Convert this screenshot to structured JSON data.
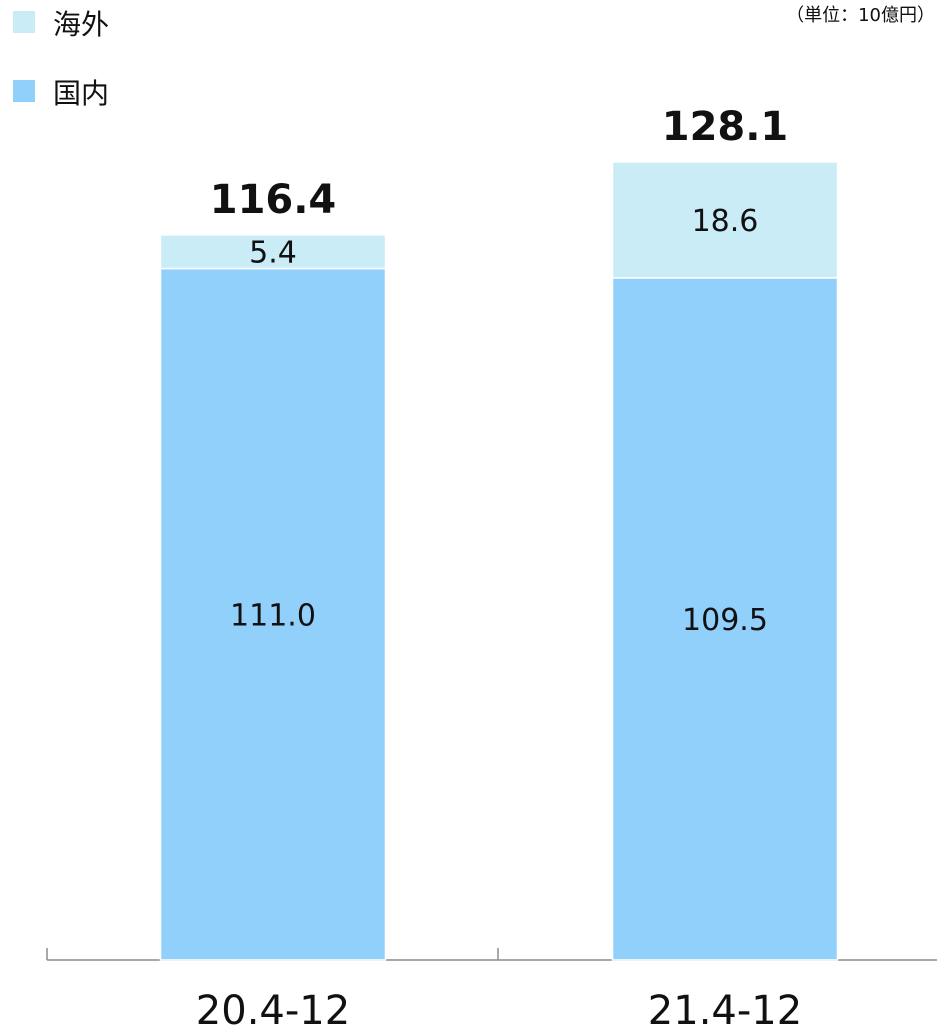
{
  "unit_note": "（単位：10億円）",
  "legend": [
    {
      "name": "海外",
      "color": "#c9ecf6"
    },
    {
      "name": "国内",
      "color": "#92d0fc"
    }
  ],
  "chart_data": {
    "type": "bar",
    "stacked": true,
    "categories": [
      "20.4-12",
      "21.4-12"
    ],
    "series": [
      {
        "name": "国内",
        "values": [
          111.0,
          109.5
        ],
        "labels": [
          "111.0",
          "109.5"
        ],
        "color": "#92d0fc"
      },
      {
        "name": "海外",
        "values": [
          5.4,
          18.6
        ],
        "labels": [
          "5.4",
          "18.6"
        ],
        "color": "#c9ecf6"
      }
    ],
    "totals": [
      "116.4",
      "128.1"
    ],
    "ylim": [
      0,
      128.1
    ],
    "grid": false,
    "legend_position": "top-left"
  }
}
